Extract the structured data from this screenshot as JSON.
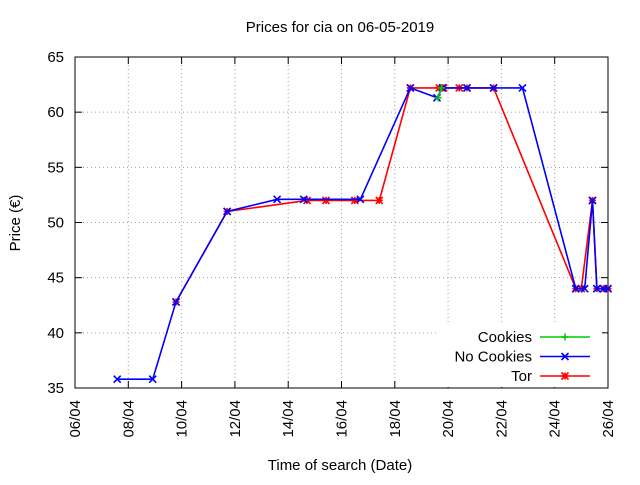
{
  "chart_data": {
    "type": "line",
    "title": "Prices for cia on 06-05-2019",
    "xlabel": "Time of search (Date)",
    "ylabel": "Price (€)",
    "x_ticks": [
      "06/04",
      "08/04",
      "10/04",
      "12/04",
      "14/04",
      "16/04",
      "18/04",
      "20/04",
      "22/04",
      "24/04",
      "26/04"
    ],
    "y_ticks": [
      35,
      40,
      45,
      50,
      55,
      60,
      65
    ],
    "xlim": [
      "2019-04-06",
      "2019-04-26"
    ],
    "ylim": [
      35,
      65
    ],
    "grid": true,
    "legend_position": "bottom-right",
    "series": [
      {
        "name": "Cookies",
        "color": "#00cc00",
        "marker": "plus",
        "points": [
          [
            "2019-04-19 15:00",
            61.3
          ],
          [
            "2019-04-19 18:00",
            62.2
          ]
        ]
      },
      {
        "name": "No Cookies",
        "color": "#0000ff",
        "marker": "x",
        "points": [
          [
            "2019-04-07 14:00",
            35.8
          ],
          [
            "2019-04-08 22:00",
            35.8
          ],
          [
            "2019-04-09 19:00",
            42.8
          ],
          [
            "2019-04-11 17:00",
            51.0
          ],
          [
            "2019-04-13 14:00",
            52.1
          ],
          [
            "2019-04-14 14:00",
            52.1
          ],
          [
            "2019-04-16 17:00",
            52.1
          ],
          [
            "2019-04-18 14:00",
            62.2
          ],
          [
            "2019-04-19 14:00",
            61.3
          ],
          [
            "2019-04-19 19:00",
            62.2
          ],
          [
            "2019-04-20 17:00",
            62.2
          ],
          [
            "2019-04-21 17:00",
            62.2
          ],
          [
            "2019-04-22 19:00",
            62.2
          ],
          [
            "2019-04-24 19:00",
            44.0
          ],
          [
            "2019-04-25 03:00",
            44.0
          ],
          [
            "2019-04-25 10:00",
            52.0
          ],
          [
            "2019-04-25 14:00",
            44.0
          ],
          [
            "2019-04-25 20:00",
            44.0
          ],
          [
            "2019-04-26 00:00",
            44.0
          ]
        ]
      },
      {
        "name": "Tor",
        "color": "#ff0000",
        "marker": "star",
        "points": [
          [
            "2019-04-09 19:00",
            42.8
          ],
          [
            "2019-04-11 17:00",
            51.0
          ],
          [
            "2019-04-14 17:00",
            52.0
          ],
          [
            "2019-04-15 10:00",
            52.0
          ],
          [
            "2019-04-16 12:00",
            52.0
          ],
          [
            "2019-04-17 10:00",
            52.0
          ],
          [
            "2019-04-18 14:00",
            62.2
          ],
          [
            "2019-04-19 16:00",
            62.2
          ],
          [
            "2019-04-19 20:00",
            62.2
          ],
          [
            "2019-04-20 10:00",
            62.2
          ],
          [
            "2019-04-20 17:00",
            62.2
          ],
          [
            "2019-04-21 17:00",
            62.2
          ],
          [
            "2019-04-24 19:00",
            44.0
          ],
          [
            "2019-04-25 00:00",
            44.0
          ],
          [
            "2019-04-25 10:00",
            52.0
          ],
          [
            "2019-04-25 14:00",
            44.0
          ],
          [
            "2019-04-25 20:00",
            44.0
          ],
          [
            "2019-04-26 00:00",
            44.0
          ]
        ]
      }
    ]
  }
}
